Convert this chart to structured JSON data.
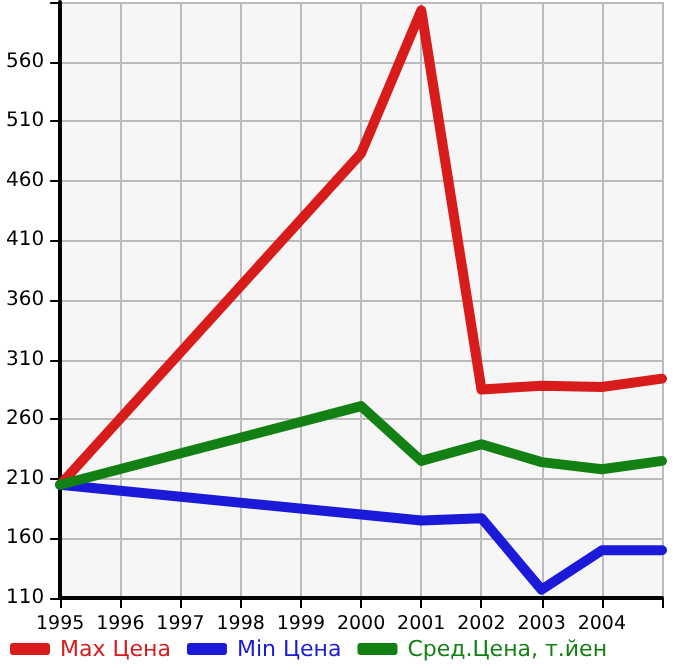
{
  "chart_data": {
    "type": "line",
    "x": [
      1995,
      2000,
      2001,
      2002,
      2003,
      2004,
      2005
    ],
    "series": [
      {
        "name": "Max Цена",
        "color": "#d81b1b",
        "values": [
          205,
          483,
          603,
          285,
          288,
          287,
          294
        ]
      },
      {
        "name": "Min Цена",
        "color": "#1a1ad8",
        "values": [
          205,
          180,
          175,
          177,
          117,
          150,
          150
        ]
      },
      {
        "name": "Сред.Цена, т.йен",
        "color": "#128012",
        "values": [
          205,
          271,
          225,
          239,
          224,
          218,
          225
        ]
      }
    ],
    "xlim": [
      1995,
      2005
    ],
    "xticks": [
      1995,
      1996,
      1997,
      1998,
      1999,
      2000,
      2001,
      2002,
      2003,
      2004,
      {
        "value": 2005,
        "label": null
      }
    ],
    "ylim": [
      110,
      610
    ],
    "yticks": [
      110,
      160,
      210,
      260,
      310,
      360,
      410,
      460,
      510,
      560,
      {
        "value": 610,
        "label": null
      }
    ],
    "grid": true,
    "legend": "bottom",
    "marker": "none",
    "line_style": "solid"
  }
}
